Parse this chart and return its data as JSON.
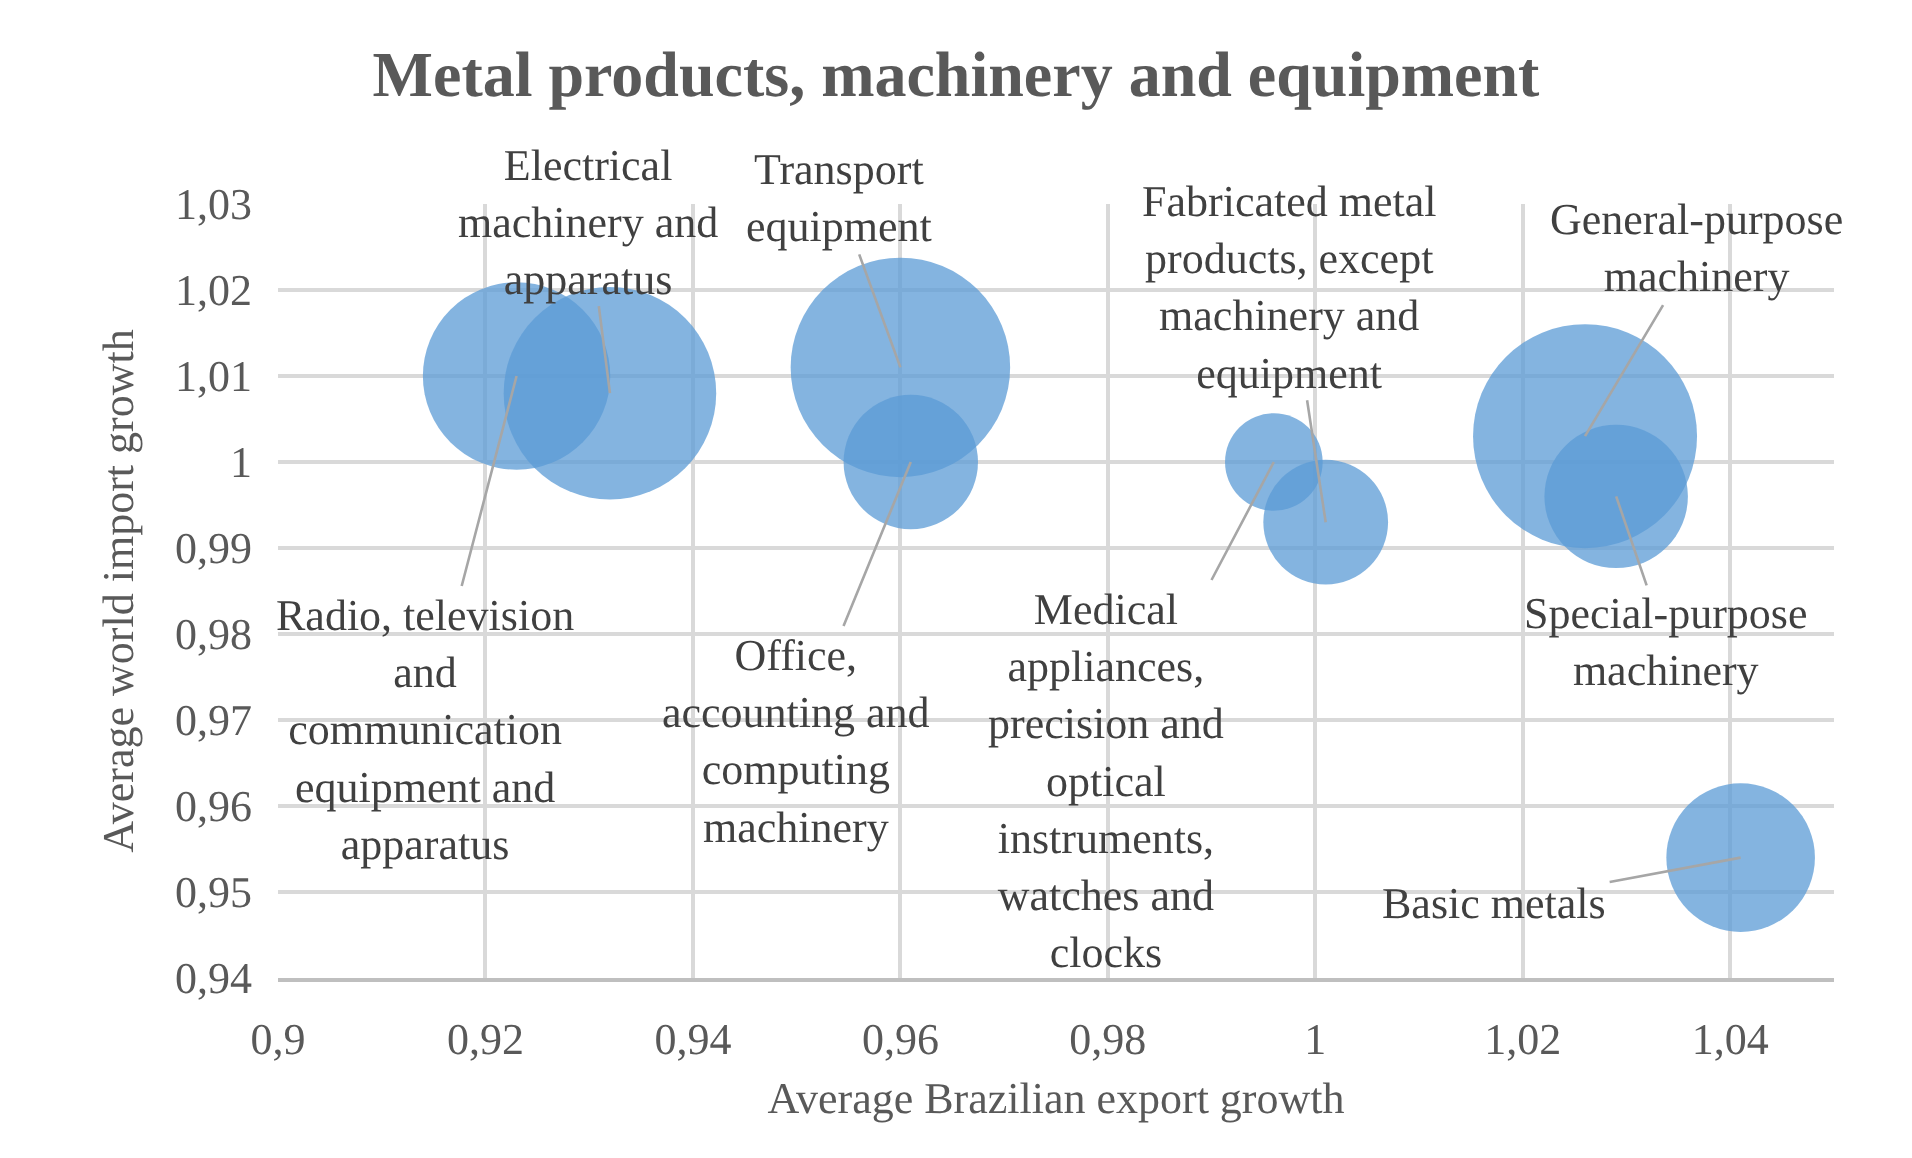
{
  "chart_data": {
    "type": "bubble",
    "title": "Metal products, machinery and equipment",
    "xlabel": "Average Brazilian export growth",
    "ylabel": "Average world import growth",
    "x": [
      0.923,
      0.932,
      0.96,
      0.961,
      0.996,
      1.001,
      1.026,
      1.029,
      1.041
    ],
    "values": [
      1.01,
      1.008,
      1.011,
      1.0,
      1.0,
      0.993,
      1.003,
      0.996,
      0.954
    ],
    "sizes": [
      0.7,
      0.9,
      0.96,
      0.36,
      0.19,
      0.31,
      1,
      0.41,
      0.44
    ],
    "color": "#5b9bd5",
    "xlim": [
      0.9,
      1.05
    ],
    "xticks": [
      {
        "value": 0.9,
        "label": "0,9"
      },
      {
        "value": 0.92,
        "label": "0,92"
      },
      {
        "value": 0.94,
        "label": "0,94"
      },
      {
        "value": 0.96,
        "label": "0,96"
      },
      {
        "value": 0.98,
        "label": "0,98"
      },
      1,
      {
        "value": 1.02,
        "label": "1,02"
      },
      {
        "value": 1.04,
        "label": "1,04"
      }
    ],
    "ylim": [
      0.94,
      1.03
    ],
    "yticks": [
      {
        "value": 0.94,
        "label": "0,94"
      },
      {
        "value": 0.95,
        "label": "0,95"
      },
      {
        "value": 0.96,
        "label": "0,96"
      },
      {
        "value": 0.97,
        "label": "0,97"
      },
      {
        "value": 0.98,
        "label": "0,98"
      },
      {
        "value": 0.99,
        "label": "0,99"
      },
      1,
      {
        "value": 1.01,
        "label": "1,01"
      },
      {
        "value": 1.02,
        "label": "1,02"
      },
      {
        "value": 1.03,
        "label": "1,03"
      }
    ],
    "grid": true,
    "annotations": [
      {
        "text": "Radio, television and communication equipment and apparatus",
        "x": 0.923,
        "y": 1.01
      },
      {
        "text": "Electrical machinery and apparatus",
        "x": 0.932,
        "y": 1.008
      },
      {
        "text": "Transport equipment",
        "x": 0.96,
        "y": 1.011
      },
      {
        "text": "Office, accounting and computing machinery",
        "x": 0.961,
        "y": 1.0
      },
      {
        "text": "Medical appliances, precision and optical instruments, watches and clocks",
        "x": 0.996,
        "y": 1.0
      },
      {
        "text": "Fabricated metal products, except machinery and equipment",
        "x": 1.001,
        "y": 0.993
      },
      {
        "text": "General-purpose machinery",
        "x": 1.026,
        "y": 1.003
      },
      {
        "text": "Special-purpose machinery",
        "x": 1.029,
        "y": 0.996
      },
      {
        "text": "Basic metals",
        "x": 1.041,
        "y": 0.954
      }
    ]
  }
}
